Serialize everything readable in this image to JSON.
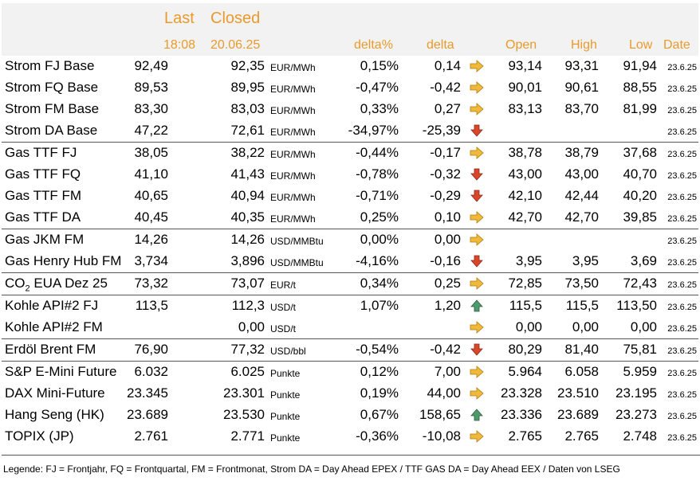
{
  "header": {
    "last": "Last",
    "closed": "Closed",
    "last_time": "18:08",
    "closed_date": "20.06.25",
    "delta_pct": "delta%",
    "delta": "delta",
    "open": "Open",
    "high": "High",
    "low": "Low",
    "date": "Date"
  },
  "rows": [
    {
      "name": "Strom FJ Base",
      "last": "92,49",
      "closed": "92,35",
      "unit": "EUR/MWh",
      "dpct": "0,15%",
      "delta": "0,14",
      "arrow": "right-arrow-icon",
      "open": "93,14",
      "high": "93,31",
      "low": "91,94",
      "date": "23.6.25",
      "sep": false
    },
    {
      "name": "Strom FQ Base",
      "last": "89,53",
      "closed": "89,95",
      "unit": "EUR/MWh",
      "dpct": "-0,47%",
      "delta": "-0,42",
      "arrow": "right-arrow-icon",
      "open": "90,01",
      "high": "90,61",
      "low": "88,55",
      "date": "23.6.25",
      "sep": false
    },
    {
      "name": "Strom FM Base",
      "last": "83,30",
      "closed": "83,03",
      "unit": "EUR/MWh",
      "dpct": "0,33%",
      "delta": "0,27",
      "arrow": "right-arrow-icon",
      "open": "83,13",
      "high": "83,70",
      "low": "81,99",
      "date": "23.6.25",
      "sep": false
    },
    {
      "name": "Strom DA Base",
      "last": "47,22",
      "closed": "72,61",
      "unit": "EUR/MWh",
      "dpct": "-34,97%",
      "delta": "-25,39",
      "arrow": "down-arrow-icon",
      "open": "",
      "high": "",
      "low": "",
      "date": "23.6.25",
      "sep": false
    },
    {
      "name": "Gas TTF FJ",
      "last": "38,05",
      "closed": "38,22",
      "unit": "EUR/MWh",
      "dpct": "-0,44%",
      "delta": "-0,17",
      "arrow": "right-arrow-icon",
      "open": "38,78",
      "high": "38,79",
      "low": "37,68",
      "date": "23.6.25",
      "sep": true
    },
    {
      "name": "Gas TTF FQ",
      "last": "41,10",
      "closed": "41,43",
      "unit": "EUR/MWh",
      "dpct": "-0,78%",
      "delta": "-0,32",
      "arrow": "down-arrow-icon",
      "open": "43,00",
      "high": "43,00",
      "low": "40,70",
      "date": "23.6.25",
      "sep": false
    },
    {
      "name": "Gas TTF FM",
      "last": "40,65",
      "closed": "40,94",
      "unit": "EUR/MWh",
      "dpct": "-0,71%",
      "delta": "-0,29",
      "arrow": "down-arrow-icon",
      "open": "42,10",
      "high": "42,44",
      "low": "40,20",
      "date": "23.6.25",
      "sep": false
    },
    {
      "name": "Gas TTF DA",
      "last": "40,45",
      "closed": "40,35",
      "unit": "EUR/MWh",
      "dpct": "0,25%",
      "delta": "0,10",
      "arrow": "right-arrow-icon",
      "open": "42,70",
      "high": "42,70",
      "low": "39,85",
      "date": "23.6.25",
      "sep": false
    },
    {
      "name": "Gas JKM FM",
      "last": "14,26",
      "closed": "14,26",
      "unit": "USD/MMBtu",
      "dpct": "0,00%",
      "delta": "0,00",
      "arrow": "right-arrow-icon",
      "open": "",
      "high": "",
      "low": "",
      "date": "23.6.25",
      "sep": true
    },
    {
      "name": "Gas Henry Hub FM",
      "last": "3,734",
      "closed": "3,896",
      "unit": "USD/MMBtu",
      "dpct": "-4,16%",
      "delta": "-0,16",
      "arrow": "down-arrow-icon",
      "open": "3,95",
      "high": "3,95",
      "low": "3,69",
      "date": "23.6.25",
      "sep": false
    },
    {
      "name": "CO",
      "name_sub": "2",
      "name_rest": " EUA Dez 25",
      "last": "73,32",
      "closed": "73,07",
      "unit": "EUR/t",
      "dpct": "0,34%",
      "delta": "0,25",
      "arrow": "right-arrow-icon",
      "open": "72,85",
      "high": "73,50",
      "low": "72,43",
      "date": "23.6.25",
      "sep": true
    },
    {
      "name": "Kohle API#2 FJ",
      "last": "113,5",
      "closed": "112,3",
      "unit": "USD/t",
      "dpct": "1,07%",
      "delta": "1,20",
      "arrow": "up-arrow-icon",
      "open": "115,5",
      "high": "115,5",
      "low": "113,50",
      "date": "23.6.25",
      "sep": true
    },
    {
      "name": "Kohle API#2 FM",
      "last": "",
      "closed": "0,00",
      "unit": "USD/t",
      "dpct": "",
      "delta": "",
      "arrow": "right-arrow-icon",
      "open": "0,00",
      "high": "0,00",
      "low": "0,00",
      "date": "23.6.25",
      "sep": false
    },
    {
      "name": "Erdöl Brent FM",
      "last": "76,90",
      "closed": "77,32",
      "unit": "USD/bbl",
      "dpct": "-0,54%",
      "delta": "-0,42",
      "arrow": "down-arrow-icon",
      "open": "80,29",
      "high": "81,40",
      "low": "75,81",
      "date": "23.6.25",
      "sep": true
    },
    {
      "name": "S&P E-Mini Future",
      "last": "6.032",
      "closed": "6.025",
      "unit": "Punkte",
      "dpct": "0,12%",
      "delta": "7,00",
      "arrow": "right-arrow-icon",
      "open": "5.964",
      "high": "6.058",
      "low": "5.959",
      "date": "23.6.25",
      "sep": true
    },
    {
      "name": "DAX Mini-Future",
      "last": "23.345",
      "closed": "23.301",
      "unit": "Punkte",
      "dpct": "0,19%",
      "delta": "44,00",
      "arrow": "right-arrow-icon",
      "open": "23.328",
      "high": "23.510",
      "low": "23.195",
      "date": "23.6.25",
      "sep": false
    },
    {
      "name": "Hang Seng (HK)",
      "last": "23.689",
      "closed": "23.530",
      "unit": "Punkte",
      "dpct": "0,67%",
      "delta": "158,65",
      "arrow": "up-arrow-icon",
      "open": "23.336",
      "high": "23.689",
      "low": "23.273",
      "date": "23.6.25",
      "sep": false
    },
    {
      "name": "TOPIX (JP)",
      "last": "2.761",
      "closed": "2.771",
      "unit": "Punkte",
      "dpct": "-0,36%",
      "delta": "-10,08",
      "arrow": "right-arrow-icon",
      "open": "2.765",
      "high": "2.765",
      "low": "2.748",
      "date": "23.6.25",
      "sep": false
    }
  ],
  "colors": {
    "header_accent": "#e99a2c",
    "arrow_right": "#f0b93a",
    "arrow_down": "#d9472b",
    "arrow_up": "#4e9a6a"
  },
  "legend": "Legende: FJ = Frontjahr, FQ = Frontquartal, FM = Frontmonat, Strom DA = Day Ahead EPEX / TTF GAS DA = Day Ahead EEX / Daten von LSEG"
}
